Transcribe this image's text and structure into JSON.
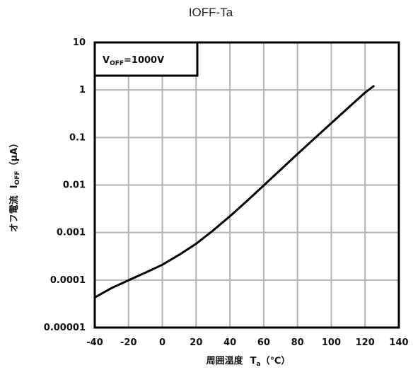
{
  "chart_data": {
    "type": "line",
    "title": "IOFF-Ta",
    "xlabel": {
      "main": "周囲温度",
      "sym": "T",
      "sub": "a",
      "unit": "（℃）"
    },
    "ylabel": {
      "main": "オフ電流",
      "sym": "I",
      "sub": "OFF",
      "unit": "（μA）"
    },
    "annotation": {
      "sym": "V",
      "sub": "OFF",
      "rest": "=1000V"
    },
    "xlim": [
      -40,
      140
    ],
    "ylim": [
      1e-05,
      10
    ],
    "yscale": "log",
    "grid": true,
    "x_ticks": [
      "-40",
      "-20",
      "0",
      "20",
      "40",
      "60",
      "80",
      "100",
      "120",
      "140"
    ],
    "y_ticks": [
      "10",
      "1",
      "0.1",
      "0.01",
      "0.001",
      "0.0001",
      "0.00001"
    ],
    "series": [
      {
        "color": "#000000",
        "x": [
          -40,
          -30,
          -20,
          -10,
          0,
          10,
          20,
          30,
          40,
          50,
          60,
          70,
          80,
          90,
          100,
          110,
          120,
          125
        ],
        "y": [
          4.3e-05,
          6.8e-05,
          9.9e-05,
          0.000143,
          0.00021,
          0.00034,
          0.00058,
          0.0011,
          0.0022,
          0.0046,
          0.0098,
          0.021,
          0.045,
          0.095,
          0.2,
          0.42,
          0.88,
          1.2
        ]
      }
    ]
  }
}
